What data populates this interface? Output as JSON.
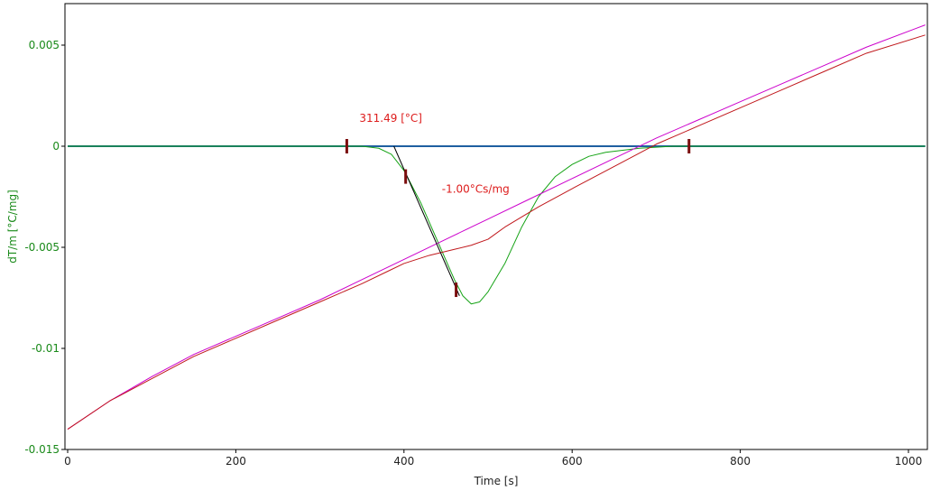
{
  "chart_data": {
    "type": "line",
    "xlabel": "Time [s]",
    "ylabel": "dT/m  [°C/mg]",
    "xlim": [
      0,
      1020
    ],
    "ylim": [
      -0.015,
      0.007
    ],
    "xticks": [
      0,
      200,
      400,
      600,
      800,
      1000
    ],
    "xtick_labels": [
      "0",
      "200",
      "400",
      "600",
      "800",
      "1000"
    ],
    "yticks": [
      0.005,
      0,
      -0.005,
      -0.01,
      -0.015
    ],
    "ytick_labels": [
      "0.005",
      "0",
      "-0.005",
      "-0.01",
      "-0.015"
    ],
    "grid": false,
    "legend": "none",
    "annotations": [
      {
        "text": "311.49 [°C]",
        "x": 347,
        "y": 0.0012,
        "color": "#dd1c1c"
      },
      {
        "text": "-1.00°Cs/mg",
        "x": 445,
        "y": -0.0023,
        "color": "#dd1c1c"
      }
    ],
    "markers": [
      {
        "x": 332,
        "y": 0.0
      },
      {
        "x": 402,
        "y": -0.0015
      },
      {
        "x": 462,
        "y": -0.0071
      },
      {
        "x": 739,
        "y": 0.0
      }
    ],
    "tangent_line": {
      "x": [
        388,
        466
      ],
      "y": [
        0.0,
        -0.0074
      ],
      "color": "#000000"
    },
    "series": [
      {
        "color": "#1f5fa0",
        "x": [
          0,
          1020
        ],
        "y": [
          0,
          0
        ]
      },
      {
        "color": "#16a316",
        "x": [
          0,
          350,
          370,
          385,
          400,
          420,
          440,
          460,
          470,
          480,
          490,
          500,
          520,
          540,
          560,
          580,
          600,
          620,
          640,
          660,
          680,
          700,
          720,
          740,
          1020
        ],
        "y": [
          0,
          0,
          -0.0001,
          -0.0004,
          -0.0012,
          -0.0028,
          -0.0047,
          -0.0066,
          -0.0074,
          -0.0078,
          -0.0077,
          -0.0072,
          -0.0058,
          -0.004,
          -0.0025,
          -0.0015,
          -0.0009,
          -0.0005,
          -0.0003,
          -0.0002,
          -0.0001,
          -5e-05,
          0,
          0,
          0
        ]
      },
      {
        "color": "#cc00cc",
        "x": [
          0,
          50,
          100,
          150,
          200,
          250,
          300,
          350,
          400,
          450,
          500,
          550,
          600,
          650,
          700,
          750,
          800,
          850,
          900,
          950,
          1020
        ],
        "y": [
          -0.014,
          -0.0126,
          -0.0114,
          -0.0103,
          -0.0094,
          -0.0085,
          -0.0076,
          -0.0066,
          -0.0056,
          -0.0046,
          -0.0036,
          -0.0026,
          -0.0016,
          -0.0006,
          0.0004,
          0.0013,
          0.0022,
          0.0031,
          0.004,
          0.0049,
          0.006
        ]
      },
      {
        "color": "#c0181c",
        "x": [
          0,
          50,
          100,
          150,
          200,
          250,
          300,
          350,
          380,
          400,
          430,
          460,
          480,
          500,
          520,
          560,
          600,
          650,
          700,
          750,
          800,
          850,
          900,
          950,
          1020
        ],
        "y": [
          -0.014,
          -0.0126,
          -0.0115,
          -0.0104,
          -0.0095,
          -0.0086,
          -0.0077,
          -0.0068,
          -0.0062,
          -0.0058,
          -0.0054,
          -0.0051,
          -0.0049,
          -0.0046,
          -0.004,
          -0.003,
          -0.0021,
          -0.001,
          0.0001,
          0.001,
          0.0019,
          0.0028,
          0.0037,
          0.0046,
          0.0055
        ]
      }
    ]
  }
}
